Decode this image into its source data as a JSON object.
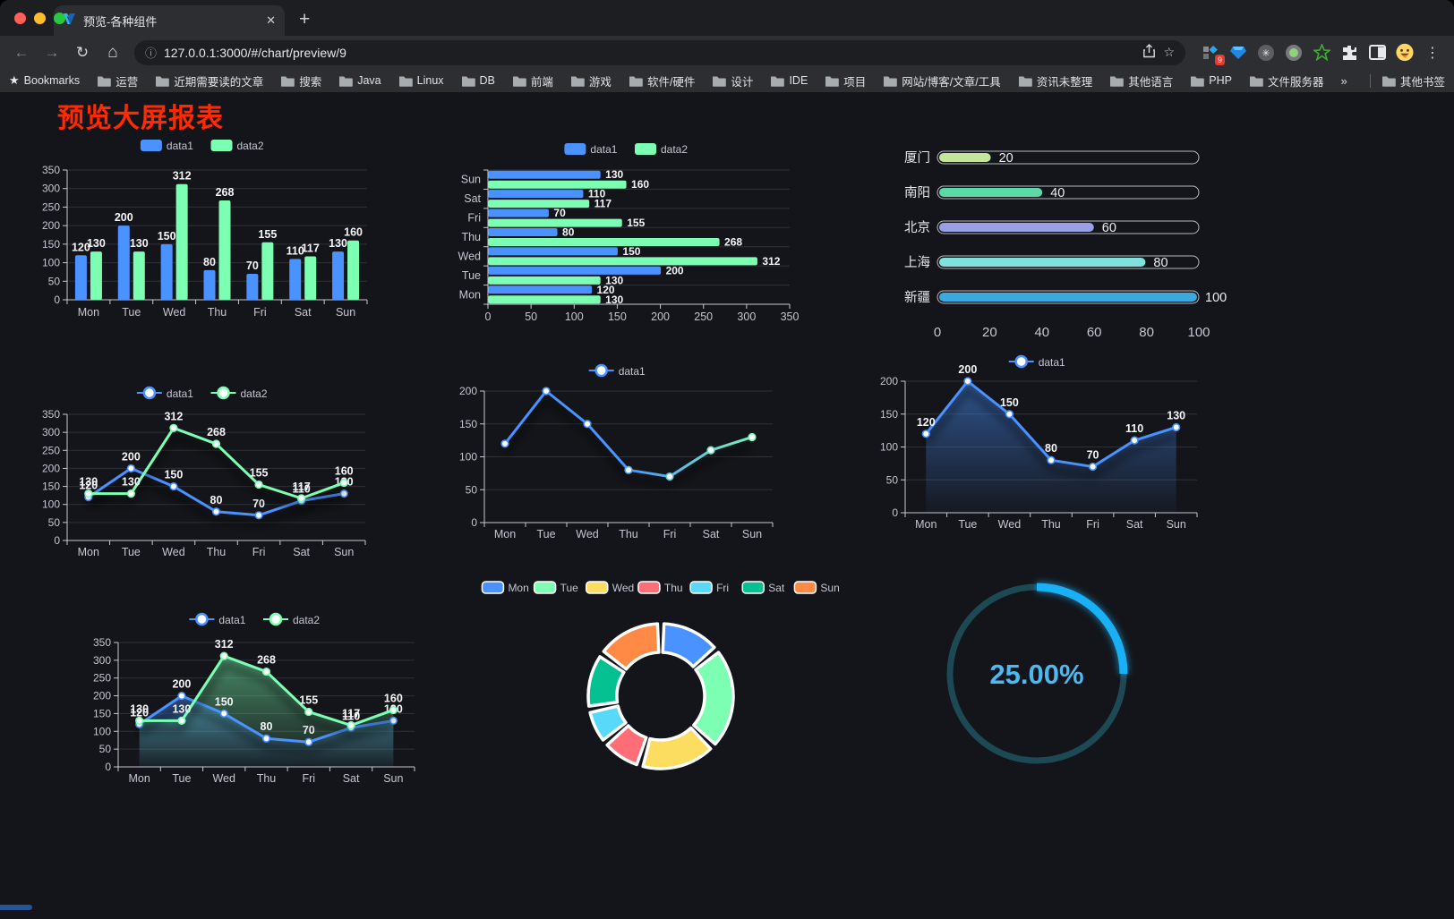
{
  "browser": {
    "traffic_lights": [
      "#ff5f57",
      "#febc2e",
      "#28c840"
    ],
    "tab_title": "预览-各种组件",
    "tab_close": "✕",
    "new_tab": "+",
    "url": "127.0.0.1:3000/#/chart/preview/9",
    "extension_badge": "9",
    "bookmarks_label": "Bookmarks",
    "bookmarks": [
      "运营",
      "近期需要读的文章",
      "搜索",
      "Java",
      "Linux",
      "DB",
      "前端",
      "游戏",
      "软件/硬件",
      "设计",
      "IDE",
      "项目",
      "网站/博客/文章/工具",
      "资讯未整理",
      "其他语言",
      "PHP",
      "文件服务器"
    ],
    "bookmarks_overflow": "»",
    "other_bookmarks": "其他书签"
  },
  "page": {
    "title": "预览大屏报表",
    "title_color": "#ff2a00"
  },
  "chart_data": [
    {
      "id": "bar-vertical",
      "type": "bar",
      "categories": [
        "Mon",
        "Tue",
        "Wed",
        "Thu",
        "Fri",
        "Sat",
        "Sun"
      ],
      "series": [
        {
          "name": "data1",
          "color": "#4992ff",
          "values": [
            120,
            200,
            150,
            80,
            70,
            110,
            130
          ]
        },
        {
          "name": "data2",
          "color": "#7cffb2",
          "values": [
            130,
            130,
            312,
            268,
            155,
            117,
            160
          ]
        }
      ],
      "ylim": [
        0,
        350
      ],
      "ytick_step": 50,
      "legend_position": "top",
      "grid": true,
      "labels": true
    },
    {
      "id": "bar-horizontal",
      "type": "hbar",
      "categories": [
        "Mon",
        "Tue",
        "Wed",
        "Thu",
        "Fri",
        "Sat",
        "Sun"
      ],
      "series": [
        {
          "name": "data1",
          "color": "#4992ff",
          "values": [
            120,
            200,
            150,
            80,
            70,
            110,
            130
          ]
        },
        {
          "name": "data2",
          "color": "#7cffb2",
          "values": [
            130,
            130,
            312,
            268,
            155,
            117,
            160
          ]
        }
      ],
      "xlim": [
        0,
        350
      ],
      "xtick_step": 50,
      "legend_position": "top",
      "grid": true,
      "labels": true
    },
    {
      "id": "city-progress",
      "type": "progress",
      "rows": [
        {
          "label": "厦门",
          "value": 20,
          "color": "#c4e69b"
        },
        {
          "label": "南阳",
          "value": 40,
          "color": "#5cd9a9"
        },
        {
          "label": "北京",
          "value": 60,
          "color": "#9aa0e5"
        },
        {
          "label": "上海",
          "value": 80,
          "color": "#7fe2dd"
        },
        {
          "label": "新疆",
          "value": 100,
          "color": "#3aa9dd"
        }
      ],
      "max": 100,
      "xticks": [
        0,
        20,
        40,
        60,
        80,
        100
      ]
    },
    {
      "id": "line-two-series",
      "type": "line",
      "categories": [
        "Mon",
        "Tue",
        "Wed",
        "Thu",
        "Fri",
        "Sat",
        "Sun"
      ],
      "series": [
        {
          "name": "data1",
          "color": "#4992ff",
          "values": [
            120,
            200,
            150,
            80,
            70,
            110,
            130
          ],
          "area": false
        },
        {
          "name": "data2",
          "color": "#7cffb2",
          "values": [
            130,
            130,
            312,
            268,
            155,
            117,
            160
          ],
          "area": false
        }
      ],
      "ylim": [
        0,
        350
      ],
      "ytick_step": 50,
      "labels": true,
      "legend_position": "top"
    },
    {
      "id": "line-gradient",
      "type": "line",
      "categories": [
        "Mon",
        "Tue",
        "Wed",
        "Thu",
        "Fri",
        "Sat",
        "Sun"
      ],
      "series": [
        {
          "name": "data1",
          "color": "#4992ff",
          "color_end": "#7cffb2",
          "gradient": true,
          "values": [
            120,
            200,
            150,
            80,
            70,
            110,
            130
          ],
          "area": false
        }
      ],
      "ylim": [
        0,
        200
      ],
      "ytick_step": 50,
      "labels": false,
      "legend_position": "top"
    },
    {
      "id": "area-single",
      "type": "line",
      "categories": [
        "Mon",
        "Tue",
        "Wed",
        "Thu",
        "Fri",
        "Sat",
        "Sun"
      ],
      "series": [
        {
          "name": "data1",
          "color": "#4992ff",
          "values": [
            120,
            200,
            150,
            80,
            70,
            110,
            130
          ],
          "area": true
        }
      ],
      "ylim": [
        0,
        200
      ],
      "ytick_step": 50,
      "labels": true,
      "legend_position": "top"
    },
    {
      "id": "area-two-series",
      "type": "line",
      "categories": [
        "Mon",
        "Tue",
        "Wed",
        "Thu",
        "Fri",
        "Sat",
        "Sun"
      ],
      "series": [
        {
          "name": "data1",
          "color": "#4992ff",
          "values": [
            120,
            200,
            150,
            80,
            70,
            110,
            130
          ],
          "area": true
        },
        {
          "name": "data2",
          "color": "#7cffb2",
          "values": [
            130,
            130,
            312,
            268,
            155,
            117,
            160
          ],
          "area": true
        }
      ],
      "ylim": [
        0,
        350
      ],
      "ytick_step": 50,
      "labels": true,
      "legend_position": "top"
    },
    {
      "id": "donut-days",
      "type": "pie",
      "labels": [
        "Mon",
        "Tue",
        "Wed",
        "Thu",
        "Fri",
        "Sat",
        "Sun"
      ],
      "values": [
        120,
        200,
        150,
        80,
        70,
        110,
        130
      ],
      "colors": [
        "#4992ff",
        "#7cffb2",
        "#fddd60",
        "#ff6e76",
        "#58d9f9",
        "#05c091",
        "#ff8a45"
      ],
      "donut": true,
      "border_color": "#ffffff",
      "legend_position": "top"
    },
    {
      "id": "ring-progress",
      "type": "ring",
      "value_text": "25.00%",
      "percent": 25,
      "bar_color": "#1ab0f5",
      "track_color": "#1d4955",
      "text_color": "#4db9f0"
    }
  ]
}
